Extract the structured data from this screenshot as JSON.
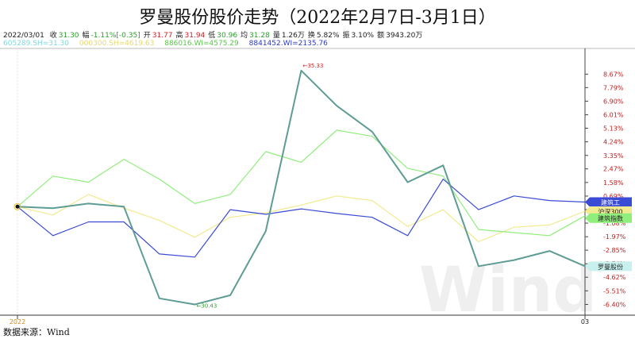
{
  "title": "罗曼股份股价走势（2022年2月7日-3月1日）",
  "info": {
    "date": "2022/03/01",
    "items": [
      {
        "label": "收",
        "value": "31.30",
        "color": "#2e9e2e"
      },
      {
        "label": "幅",
        "value": "-1.11%[-0.35]",
        "color": "#2e9e2e"
      },
      {
        "label": "开",
        "value": "31.77",
        "color": "#d62020"
      },
      {
        "label": "高",
        "value": "31.94",
        "color": "#d62020"
      },
      {
        "label": "低",
        "value": "30.96",
        "color": "#2e9e2e"
      },
      {
        "label": "均",
        "value": "31.28",
        "color": "#2e9e2e"
      },
      {
        "label": "量",
        "value": "1.26万",
        "color": "#222222"
      },
      {
        "label": "换",
        "value": "5.82%",
        "color": "#222222"
      },
      {
        "label": "振",
        "value": "3.10%",
        "color": "#222222"
      },
      {
        "label": "额",
        "value": "3943.20万",
        "color": "#222222"
      }
    ]
  },
  "legend_texts": [
    "605289.SH=31.30",
    "000300.SH=4619.63",
    "886016.WI=4575.29",
    "8841452.WI=2135.76"
  ],
  "source": "数据来源：Wind",
  "watermark": "Wind",
  "chart_data": {
    "type": "line",
    "xlabel": "",
    "ylabel": "",
    "x": [
      1,
      2,
      3,
      4,
      5,
      6,
      7,
      8,
      9,
      10,
      11,
      12,
      13,
      14,
      15,
      16,
      17
    ],
    "x_tick_labels": [
      {
        "x": 0,
        "label": "2022"
      },
      {
        "x": 17,
        "label": "03"
      }
    ],
    "ylim": [
      -7.0,
      10.3
    ],
    "y_ticks": [
      "8.67%",
      "7.79%",
      "6.90%",
      "6.01%",
      "5.13%",
      "4.24%",
      "3.35%",
      "2.47%",
      "1.58%",
      "0.69%",
      "-0.19%",
      "-1.08%",
      "-1.97%",
      "-2.85%",
      "-3.74%",
      "-4.62%",
      "-5.51%",
      "-6.40%"
    ],
    "y_tick_values": [
      8.67,
      7.79,
      6.9,
      6.01,
      5.13,
      4.24,
      3.35,
      2.47,
      1.58,
      0.69,
      -0.19,
      -1.08,
      -1.97,
      -2.85,
      -3.74,
      -4.62,
      -5.51,
      -6.4
    ],
    "series": [
      {
        "name": "605289.SH",
        "color": "#5e9c94",
        "width": 2,
        "values": [
          0.0,
          -0.1,
          0.2,
          0.0,
          -6.0,
          -6.4,
          -5.8,
          -1.6,
          8.9,
          6.6,
          4.9,
          1.6,
          2.7,
          -3.9,
          -3.5,
          -2.9,
          -3.9
        ]
      },
      {
        "name": "000300.SH",
        "color": "#f2ea90",
        "width": 1.2,
        "values": [
          0.0,
          -0.55,
          0.8,
          -0.1,
          -0.9,
          -2.0,
          -0.7,
          -0.4,
          0.1,
          0.7,
          0.4,
          -1.3,
          -0.2,
          -2.3,
          -1.35,
          -1.2,
          -0.3
        ]
      },
      {
        "name": "886016.WI",
        "color": "#90ee7c",
        "width": 1.2,
        "values": [
          0.0,
          2.0,
          1.6,
          3.1,
          1.8,
          0.2,
          0.8,
          3.6,
          2.9,
          5.0,
          4.6,
          2.5,
          2.0,
          -1.5,
          -1.7,
          -1.9,
          -0.6
        ]
      },
      {
        "name": "8841452.WI",
        "color": "#3a4bd6",
        "width": 1.2,
        "values": [
          0.0,
          -1.9,
          -1.0,
          -1.0,
          -3.1,
          -3.3,
          -0.2,
          -0.5,
          -0.15,
          -0.45,
          -0.7,
          -1.9,
          1.8,
          -0.2,
          0.7,
          0.4,
          0.3
        ]
      }
    ],
    "annotations": [
      {
        "text": "35.33",
        "x": 9,
        "y": 8.9,
        "color": "#d62020"
      },
      {
        "text": "30.43",
        "x": 6,
        "y": -6.4,
        "color": "#2e9e2e"
      }
    ],
    "right_tags": [
      {
        "text": "建筑工",
        "y": 0.3,
        "bg": "#3a4bd6",
        "fg": "#ffffff"
      },
      {
        "text": "沪深300",
        "y": -0.3,
        "bg": "#f2ea90",
        "fg": "#222222"
      },
      {
        "text": "建筑指数",
        "y": -0.75,
        "bg": "#90ee7c",
        "fg": "#222222"
      },
      {
        "text": "罗曼股份",
        "y": -3.9,
        "bg": "#c8f0ee",
        "fg": "#222222"
      }
    ]
  }
}
